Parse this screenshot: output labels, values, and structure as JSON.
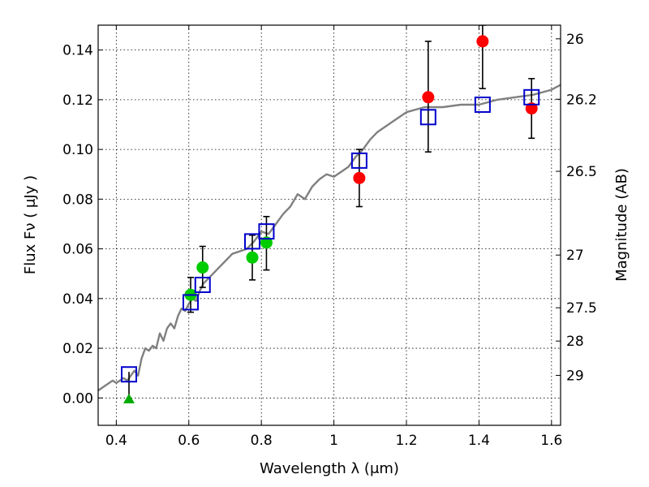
{
  "chart_data": {
    "type": "scatter",
    "title": "",
    "xlabel": "Wavelength  λ (μm)",
    "ylabel": "Flux  Fν  ( μJy )",
    "ylabel_right": "Magnitude (AB)",
    "xlim": [
      0.35,
      1.625
    ],
    "ylim": [
      -0.011,
      0.15
    ],
    "grid": true,
    "x_ticks": [
      0.4,
      0.6,
      0.8,
      1.0,
      1.2,
      1.4,
      1.6
    ],
    "x_tick_labels": [
      "0.4",
      "0.6",
      "0.8",
      "1",
      "1.2",
      "1.4",
      "1.6"
    ],
    "y_ticks": [
      0.0,
      0.02,
      0.04,
      0.06,
      0.08,
      0.1,
      0.12,
      0.14
    ],
    "y_tick_labels": [
      "0.00",
      "0.02",
      "0.04",
      "0.06",
      "0.08",
      "0.10",
      "0.12",
      "0.14"
    ],
    "mag_ticks": [
      {
        "label": "26",
        "flux": 0.1445
      },
      {
        "label": "26.2",
        "flux": 0.1202
      },
      {
        "label": "26.5",
        "flux": 0.0912
      },
      {
        "label": "27",
        "flux": 0.0575
      },
      {
        "label": "27.5",
        "flux": 0.0363
      },
      {
        "label": "28",
        "flux": 0.0229
      },
      {
        "label": "29",
        "flux": 0.0091
      }
    ],
    "series": [
      {
        "kind": "line",
        "color": "#808080",
        "x": [
          0.35,
          0.37,
          0.39,
          0.4,
          0.41,
          0.42,
          0.43,
          0.44,
          0.45,
          0.46,
          0.47,
          0.48,
          0.49,
          0.5,
          0.51,
          0.52,
          0.53,
          0.54,
          0.55,
          0.56,
          0.57,
          0.58,
          0.59,
          0.6,
          0.61,
          0.62,
          0.63,
          0.64,
          0.66,
          0.68,
          0.7,
          0.72,
          0.74,
          0.76,
          0.78,
          0.8,
          0.82,
          0.84,
          0.86,
          0.88,
          0.9,
          0.92,
          0.94,
          0.96,
          0.98,
          1.0,
          1.02,
          1.04,
          1.06,
          1.08,
          1.1,
          1.12,
          1.15,
          1.2,
          1.25,
          1.3,
          1.35,
          1.4,
          1.45,
          1.5,
          1.55,
          1.6,
          1.625
        ],
        "values": [
          0.003,
          0.005,
          0.007,
          0.006,
          0.007,
          0.008,
          0.007,
          0.009,
          0.011,
          0.009,
          0.016,
          0.02,
          0.019,
          0.021,
          0.02,
          0.026,
          0.023,
          0.028,
          0.03,
          0.028,
          0.033,
          0.036,
          0.035,
          0.038,
          0.04,
          0.039,
          0.043,
          0.046,
          0.049,
          0.052,
          0.055,
          0.058,
          0.059,
          0.06,
          0.063,
          0.067,
          0.066,
          0.07,
          0.074,
          0.077,
          0.082,
          0.08,
          0.085,
          0.088,
          0.09,
          0.089,
          0.091,
          0.093,
          0.097,
          0.1,
          0.104,
          0.107,
          0.11,
          0.115,
          0.117,
          0.117,
          0.118,
          0.118,
          0.12,
          0.121,
          0.122,
          0.124,
          0.126
        ]
      },
      {
        "kind": "model-points",
        "color": "#0000cc",
        "x": [
          0.435,
          0.605,
          0.638,
          0.775,
          0.814,
          1.07,
          1.26,
          1.41,
          1.545
        ],
        "values": [
          0.0095,
          0.0385,
          0.0455,
          0.063,
          0.067,
          0.0955,
          0.113,
          0.118,
          0.121
        ]
      },
      {
        "kind": "green-points",
        "color": "#00cc00",
        "x": [
          0.605,
          0.638,
          0.775,
          0.814
        ],
        "values": [
          0.0415,
          0.0525,
          0.0565,
          0.0625
        ],
        "err_low": [
          0.0345,
          0.0445,
          0.0475,
          0.0515
        ],
        "err_high": [
          0.0485,
          0.061,
          0.0655,
          0.073
        ]
      },
      {
        "kind": "red-points",
        "color": "#ff0000",
        "x": [
          1.07,
          1.26,
          1.41,
          1.545
        ],
        "values": [
          0.0885,
          0.121,
          0.1435,
          0.1165
        ],
        "err_low": [
          0.077,
          0.099,
          0.1245,
          0.1045
        ],
        "err_high": [
          0.1,
          0.1435,
          0.15,
          0.1285
        ]
      },
      {
        "kind": "upper-limit",
        "color": "#00aa00",
        "x": [
          0.435
        ],
        "values": [
          -0.0005
        ],
        "err_high": [
          0.0105
        ]
      }
    ]
  }
}
